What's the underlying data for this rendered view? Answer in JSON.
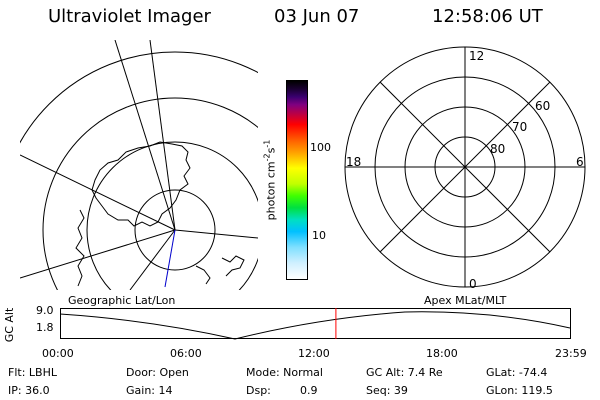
{
  "header": {
    "title": "Ultraviolet Imager",
    "date": "03 Jun 07",
    "time": "12:58:06 UT"
  },
  "colorbar": {
    "unit_label": "photon cm",
    "unit_exp1": "-2",
    "unit_mid": "s",
    "unit_exp2": "-1",
    "tick_high": "100",
    "tick_low": "10"
  },
  "polar_right": {
    "label_top": "12",
    "label_left": "18",
    "label_right": "6",
    "label_bottom": "0",
    "lat_60": "60",
    "lat_70": "70",
    "lat_80": "80"
  },
  "panel_labels": {
    "left": "Geographic Lat/Lon",
    "right": "Apex  MLat/MLT"
  },
  "timeline": {
    "ylabel": "GC Alt",
    "y_top": "9.0",
    "y_bottom": "1.8",
    "ticks": [
      "00:00",
      "06:00",
      "12:00",
      "18:00",
      "23:59"
    ],
    "marker_fraction": 0.54,
    "line_color": "#ff0000"
  },
  "footer": {
    "flt": "Flt: LBHL",
    "door": "Door: Open",
    "mode": "Mode: Normal",
    "gcalt": "GC Alt: 7.4 Re",
    "glat": "GLat: -74.4",
    "ip": "IP: 36.0",
    "gain": "Gain: 14",
    "dsp_label": "Dsp:",
    "dsp_value": "0.9",
    "seq": "Seq: 39",
    "glon": "GLon: 119.5"
  }
}
